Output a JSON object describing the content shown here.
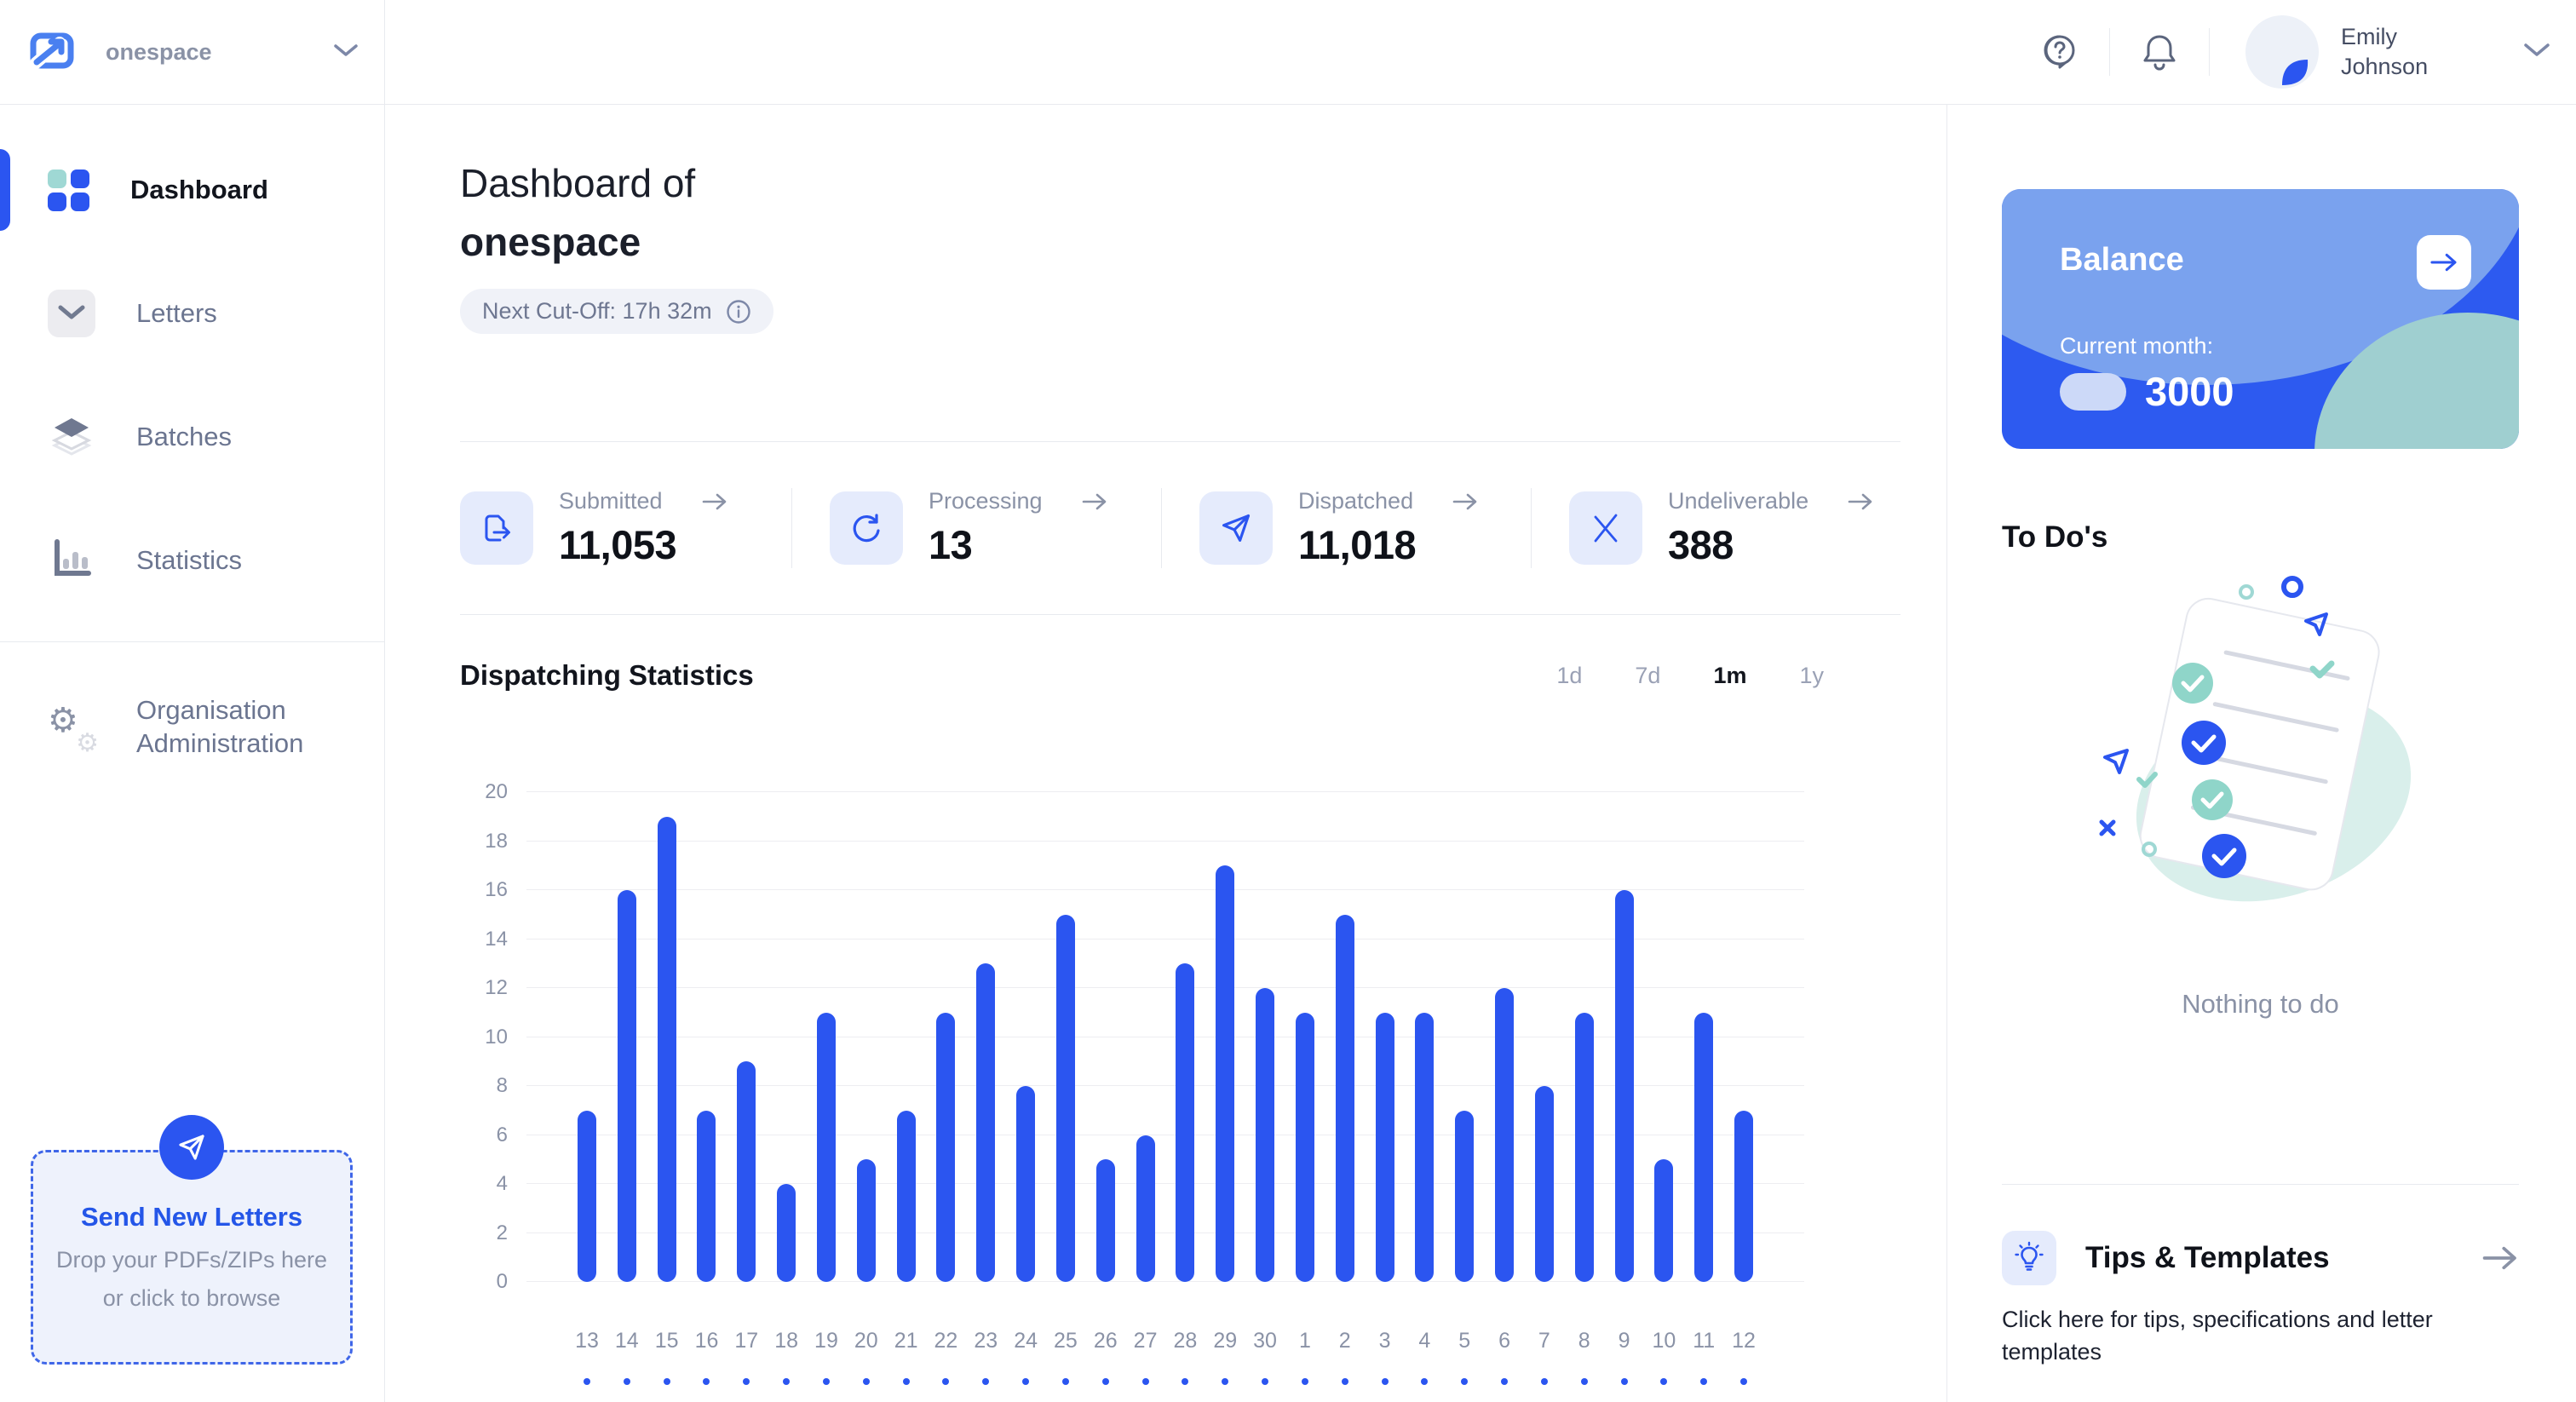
{
  "brand": {
    "name": "onespace"
  },
  "header": {
    "user_name": "Emily Johnson"
  },
  "sidebar": {
    "items": [
      {
        "label": "Dashboard",
        "active": true
      },
      {
        "label": "Letters",
        "active": false
      },
      {
        "label": "Batches",
        "active": false
      },
      {
        "label": "Statistics",
        "active": false
      },
      {
        "label": "Organisation Administration",
        "active": false
      }
    ],
    "dropzone": {
      "title": "Send New Letters",
      "subtitle": "Drop your PDFs/ZIPs here or click to browse"
    }
  },
  "main": {
    "title_prefix": "Dashboard of",
    "title_org": "onespace",
    "cutoff_label": "Next Cut-Off: 17h 32m",
    "stats": [
      {
        "label": "Submitted",
        "value": "11,053",
        "icon": "document-out-icon"
      },
      {
        "label": "Processing",
        "value": "13",
        "icon": "sync-icon"
      },
      {
        "label": "Dispatched",
        "value": "11,018",
        "icon": "paper-plane-icon"
      },
      {
        "label": "Undeliverable",
        "value": "388",
        "icon": "x-icon"
      }
    ],
    "chart_section": {
      "title": "Dispatching Statistics",
      "ranges": [
        {
          "label": "1d",
          "active": false
        },
        {
          "label": "7d",
          "active": false
        },
        {
          "label": "1m",
          "active": true
        },
        {
          "label": "1y",
          "active": false
        }
      ]
    }
  },
  "chart_data": {
    "type": "bar",
    "title": "Dispatching Statistics",
    "categories": [
      "13",
      "14",
      "15",
      "16",
      "17",
      "18",
      "19",
      "20",
      "21",
      "22",
      "23",
      "24",
      "25",
      "26",
      "27",
      "28",
      "29",
      "30",
      "1",
      "2",
      "3",
      "4",
      "5",
      "6",
      "7",
      "8",
      "9",
      "10",
      "11",
      "12"
    ],
    "values": [
      7,
      16,
      19,
      7,
      9,
      4,
      11,
      5,
      7,
      11,
      13,
      8,
      15,
      5,
      6,
      13,
      17,
      12,
      11,
      15,
      11,
      11,
      7,
      12,
      8,
      11,
      16,
      5,
      11,
      7
    ],
    "xlabel": "",
    "ylabel": "",
    "ylim": [
      0,
      20
    ],
    "ytick_step": 2,
    "grid": true,
    "legend": "none",
    "bar_color": "#2b55f0",
    "axis_label_color": "#8a92a6",
    "gridline_color": "#ededf1"
  },
  "right_panel": {
    "balance": {
      "title": "Balance",
      "current_month_label": "Current month:",
      "amount": "3000"
    },
    "todos": {
      "title": "To Do's",
      "empty_text": "Nothing to do"
    },
    "tips": {
      "title": "Tips & Templates",
      "description": "Click here for tips, specifications and letter templates"
    }
  },
  "colors": {
    "accent": "#2b55f0",
    "accent_light_bg": "#e5ebfc",
    "teal": "#9fd8d4",
    "balance_card": "#2d5af0",
    "text_dark": "#12151d",
    "text_gray": "#8a92a6",
    "divider": "#e8eaef"
  }
}
